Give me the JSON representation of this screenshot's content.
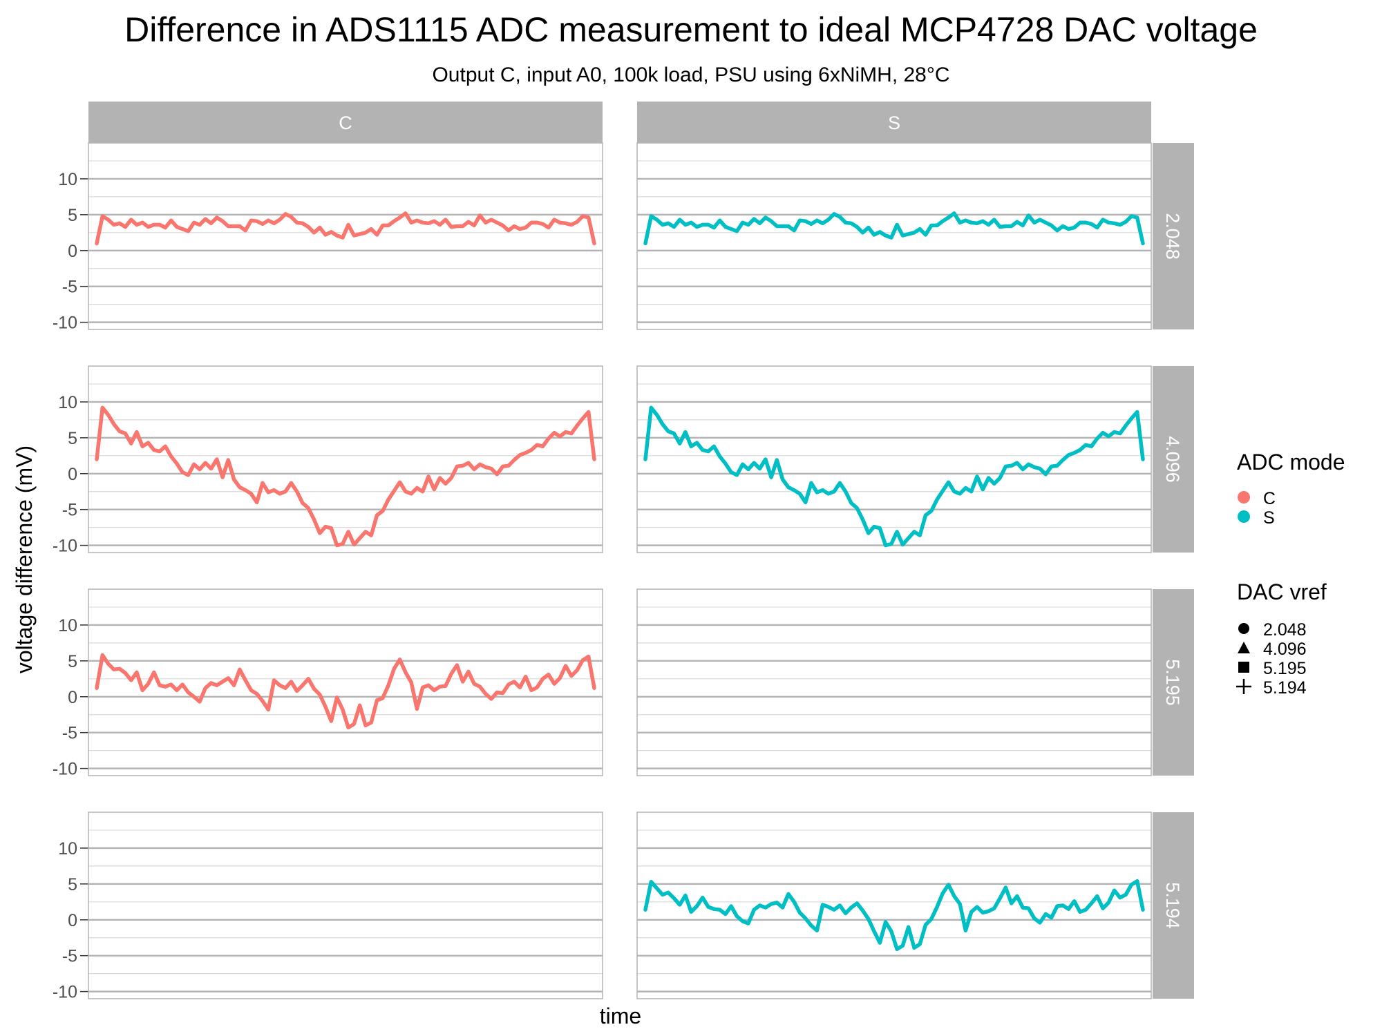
{
  "chart_data": {
    "type": "line",
    "title": "Difference in ADS1115 ADC measurement to ideal MCP4728 DAC voltage",
    "subtitle": "Output C, input A0, 100k load, PSU using 6xNiMH, 28°C",
    "xlabel": "time",
    "ylabel": "voltage difference (mV)",
    "ylim": [
      -11,
      15
    ],
    "y_ticks": [
      "10",
      "5",
      "0",
      "-5",
      "-10"
    ],
    "y_tick_values": [
      10,
      5,
      0,
      -5,
      -10
    ],
    "grid": true,
    "legend_position": "right",
    "facet_columns": [
      "C",
      "S"
    ],
    "facet_rows": [
      "2.048",
      "4.096",
      "5.195",
      "5.194"
    ],
    "colors": {
      "C": "#F8766D",
      "S": "#00BFC4",
      "strip": "#b3b3b3",
      "grid_major": "#b3b3b3",
      "grid_minor": "#d9d9d9"
    },
    "legends": {
      "mode": {
        "title": "ADC mode",
        "items": [
          "C",
          "S"
        ]
      },
      "vref": {
        "title": "DAC vref",
        "items": [
          "2.048",
          "4.096",
          "5.195",
          "5.194"
        ],
        "shapes": [
          "circle",
          "triangle",
          "square",
          "plus"
        ]
      }
    },
    "panels": [
      {
        "row": "2.048",
        "col": "C",
        "series": "C",
        "values": [
          1.0,
          4.8,
          4.3,
          3.6,
          3.8,
          3.3,
          4.3,
          3.6,
          3.9,
          3.3,
          3.6,
          3.6,
          3.2,
          4.2,
          3.3,
          3.0,
          2.7,
          3.9,
          3.6,
          4.4,
          3.8,
          4.6,
          4.1,
          3.4,
          3.4,
          3.4,
          2.8,
          4.2,
          4.1,
          3.7,
          4.2,
          3.8,
          4.3,
          5.1,
          4.7,
          3.9,
          3.8,
          3.3,
          2.5,
          3.2,
          2.2,
          2.6,
          2.1,
          1.8,
          3.6,
          2.1,
          2.3,
          2.5,
          3.0,
          2.2,
          3.5,
          3.5,
          4.1,
          4.6,
          5.2,
          3.9,
          4.2,
          3.9,
          3.8,
          4.1,
          3.6,
          4.3,
          3.3,
          3.4,
          3.4,
          4.0,
          3.5,
          4.9,
          3.9,
          4.3,
          3.9,
          3.5,
          2.8,
          3.4,
          3.0,
          3.2,
          3.9,
          3.9,
          3.7,
          3.2,
          4.3,
          3.9,
          3.8,
          3.6,
          4.0,
          4.8,
          4.6,
          1.0
        ]
      },
      {
        "row": "2.048",
        "col": "S",
        "series": "S",
        "values": [
          1.0,
          4.8,
          4.3,
          3.6,
          3.8,
          3.3,
          4.3,
          3.6,
          3.9,
          3.3,
          3.6,
          3.6,
          3.2,
          4.2,
          3.3,
          3.0,
          2.7,
          3.9,
          3.6,
          4.4,
          3.8,
          4.6,
          4.1,
          3.4,
          3.4,
          3.4,
          2.8,
          4.2,
          4.1,
          3.7,
          4.2,
          3.8,
          4.3,
          5.1,
          4.7,
          3.9,
          3.8,
          3.3,
          2.5,
          3.2,
          2.2,
          2.6,
          2.1,
          1.8,
          3.6,
          2.1,
          2.3,
          2.5,
          3.0,
          2.2,
          3.5,
          3.5,
          4.1,
          4.6,
          5.2,
          3.9,
          4.2,
          3.9,
          3.8,
          4.1,
          3.6,
          4.3,
          3.3,
          3.4,
          3.4,
          4.0,
          3.5,
          4.9,
          3.9,
          4.3,
          3.9,
          3.5,
          2.8,
          3.4,
          3.0,
          3.2,
          3.9,
          3.9,
          3.7,
          3.2,
          4.3,
          3.9,
          3.8,
          3.6,
          4.0,
          4.8,
          4.6,
          1.0
        ]
      },
      {
        "row": "4.096",
        "col": "C",
        "series": "C",
        "values": [
          2.0,
          9.2,
          8.2,
          6.9,
          5.9,
          5.6,
          4.2,
          5.8,
          3.8,
          4.3,
          3.3,
          3.1,
          3.8,
          2.4,
          1.4,
          0.2,
          -0.2,
          1.3,
          0.6,
          1.5,
          0.7,
          2.0,
          -0.5,
          1.9,
          -0.8,
          -1.9,
          -2.3,
          -2.8,
          -4.0,
          -1.3,
          -2.6,
          -2.3,
          -2.8,
          -2.5,
          -1.3,
          -2.5,
          -4.1,
          -4.8,
          -6.4,
          -8.3,
          -7.4,
          -7.6,
          -10.0,
          -9.8,
          -8.1,
          -9.9,
          -9.0,
          -8.1,
          -8.6,
          -5.8,
          -5.2,
          -3.6,
          -2.4,
          -1.2,
          -2.5,
          -2.8,
          -2.0,
          -2.5,
          -0.4,
          -2.2,
          -0.6,
          -1.4,
          -0.6,
          1.0,
          1.1,
          1.5,
          0.6,
          1.3,
          0.9,
          0.7,
          -0.1,
          1.0,
          1.1,
          1.9,
          2.6,
          2.9,
          3.3,
          4.0,
          3.8,
          4.9,
          5.7,
          5.2,
          5.8,
          5.6,
          6.7,
          7.7,
          8.6,
          2.0
        ]
      },
      {
        "row": "4.096",
        "col": "S",
        "series": "S",
        "values": [
          2.0,
          9.2,
          8.2,
          6.9,
          5.9,
          5.6,
          4.2,
          5.8,
          3.8,
          4.3,
          3.3,
          3.1,
          3.8,
          2.4,
          1.4,
          0.2,
          -0.2,
          1.3,
          0.6,
          1.5,
          0.7,
          2.0,
          -0.5,
          1.9,
          -0.8,
          -1.9,
          -2.3,
          -2.8,
          -4.0,
          -1.3,
          -2.6,
          -2.3,
          -2.8,
          -2.5,
          -1.3,
          -2.5,
          -4.1,
          -4.8,
          -6.4,
          -8.3,
          -7.4,
          -7.6,
          -10.0,
          -9.8,
          -8.1,
          -9.9,
          -9.0,
          -8.1,
          -8.6,
          -5.8,
          -5.2,
          -3.6,
          -2.4,
          -1.2,
          -2.5,
          -2.8,
          -2.0,
          -2.5,
          -0.4,
          -2.2,
          -0.6,
          -1.4,
          -0.6,
          1.0,
          1.1,
          1.5,
          0.6,
          1.3,
          0.9,
          0.7,
          -0.1,
          1.0,
          1.1,
          1.9,
          2.6,
          2.9,
          3.3,
          4.0,
          3.8,
          4.9,
          5.7,
          5.2,
          5.8,
          5.6,
          6.7,
          7.7,
          8.6,
          2.0
        ]
      },
      {
        "row": "5.195",
        "col": "C",
        "series": "C",
        "values": [
          1.2,
          5.8,
          4.6,
          3.8,
          3.9,
          3.3,
          2.3,
          3.4,
          0.9,
          1.8,
          3.4,
          1.6,
          1.4,
          1.7,
          0.9,
          1.7,
          0.6,
          0.0,
          -0.7,
          1.2,
          1.9,
          1.6,
          2.1,
          2.6,
          1.6,
          3.8,
          2.3,
          0.9,
          0.4,
          -0.6,
          -1.8,
          2.3,
          1.6,
          1.2,
          2.1,
          0.8,
          1.6,
          2.5,
          1.1,
          0.3,
          -1.4,
          -3.4,
          -0.1,
          -1.8,
          -4.3,
          -3.8,
          -1.2,
          -4.0,
          -3.6,
          -0.5,
          -0.2,
          1.6,
          3.9,
          5.2,
          3.4,
          2.0,
          -1.7,
          1.3,
          1.6,
          0.9,
          1.4,
          1.5,
          3.2,
          4.4,
          2.1,
          3.5,
          1.8,
          1.4,
          0.4,
          -0.3,
          0.6,
          0.5,
          1.7,
          2.1,
          1.3,
          2.8,
          0.9,
          1.3,
          2.5,
          3.1,
          1.8,
          2.6,
          4.3,
          2.9,
          3.7,
          5.1,
          5.6,
          1.2
        ]
      },
      {
        "row": "5.194",
        "col": "S",
        "series": "S",
        "values": [
          1.4,
          5.3,
          4.4,
          3.5,
          3.8,
          3.0,
          2.1,
          3.4,
          1.1,
          1.9,
          3.1,
          1.8,
          1.5,
          1.4,
          0.8,
          1.9,
          0.5,
          -0.2,
          -0.5,
          1.4,
          2.0,
          1.7,
          2.2,
          2.4,
          1.7,
          3.6,
          2.5,
          1.0,
          0.2,
          -0.8,
          -1.5,
          2.1,
          1.8,
          1.4,
          2.0,
          0.9,
          1.7,
          2.3,
          1.3,
          0.1,
          -1.6,
          -3.2,
          -0.3,
          -1.6,
          -4.1,
          -3.6,
          -1.0,
          -3.9,
          -3.4,
          -0.7,
          0.1,
          1.8,
          3.7,
          4.9,
          3.3,
          2.2,
          -1.5,
          1.1,
          1.8,
          1.0,
          1.2,
          1.6,
          3.0,
          4.5,
          2.3,
          3.3,
          1.7,
          1.6,
          0.2,
          -0.4,
          0.8,
          0.3,
          1.9,
          2.0,
          1.5,
          2.6,
          1.1,
          1.4,
          2.3,
          3.3,
          1.6,
          2.4,
          4.1,
          3.1,
          3.5,
          4.9,
          5.4,
          1.4
        ]
      }
    ]
  }
}
